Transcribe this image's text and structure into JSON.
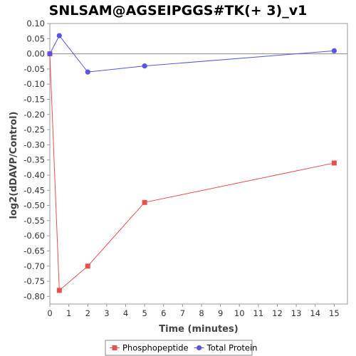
{
  "chart_data": {
    "type": "line",
    "title": "SNLSAM@AGSEIPGGS#TK(+ 3)_v1",
    "xlabel": "Time (minutes)",
    "ylabel": "log2(dDAVP/Control)",
    "xlim": [
      0,
      15.7
    ],
    "ylim": [
      -0.825,
      0.1
    ],
    "x_ticks": [
      0,
      1,
      2,
      3,
      4,
      5,
      6,
      7,
      8,
      9,
      10,
      11,
      12,
      13,
      14,
      15
    ],
    "y_ticks": [
      0.1,
      0.05,
      0.0,
      -0.05,
      -0.1,
      -0.15,
      -0.2,
      -0.25,
      -0.3,
      -0.35,
      -0.4,
      -0.45,
      -0.5,
      -0.55,
      -0.6,
      -0.65,
      -0.7,
      -0.75,
      -0.8
    ],
    "y_tick_labels": [
      "0.10",
      "0.05",
      "0.00",
      "-0.05",
      "-0.10",
      "-0.15",
      "-0.20",
      "-0.25",
      "-0.30",
      "-0.35",
      "-0.40",
      "-0.45",
      "-0.50",
      "-0.55",
      "-0.60",
      "-0.65",
      "-0.70",
      "-0.75",
      "-0.80"
    ],
    "zero_line": true,
    "grid": false,
    "legend_position": "bottom",
    "series": [
      {
        "name": "Phosphopeptide",
        "marker": "square",
        "color": "#e8504f",
        "x": [
          0,
          0.5,
          2,
          5,
          15
        ],
        "y": [
          0.0,
          -0.78,
          -0.7,
          -0.49,
          -0.36
        ]
      },
      {
        "name": "Total Protein",
        "marker": "circle",
        "color": "#5555e8",
        "x": [
          0,
          0.5,
          2,
          5,
          15
        ],
        "y": [
          0.0,
          0.06,
          -0.06,
          -0.04,
          0.01
        ]
      }
    ]
  }
}
